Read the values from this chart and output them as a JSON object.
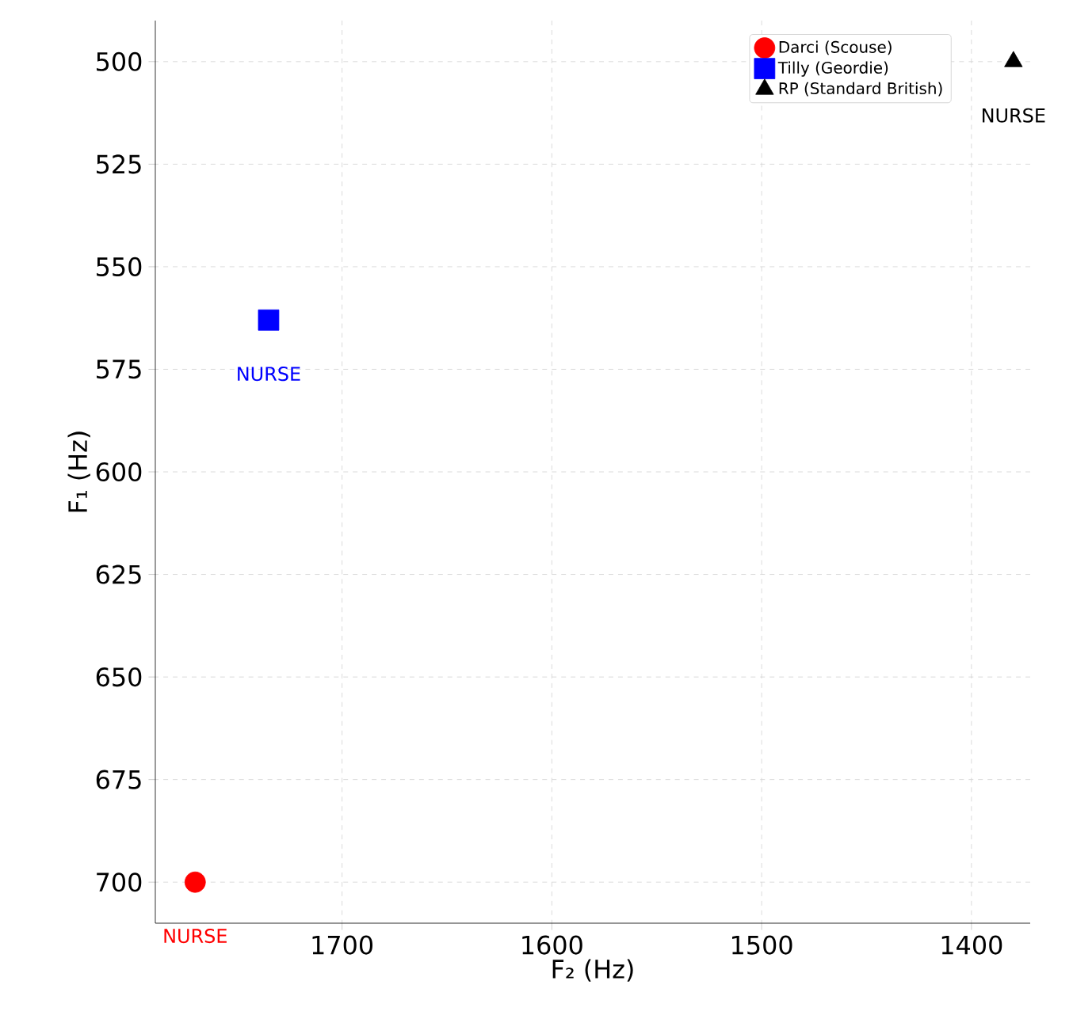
{
  "chart_data": {
    "type": "scatter",
    "xlabel": "F₂ (Hz)",
    "ylabel": "F₁ (Hz)",
    "xlim": [
      1789,
      1372
    ],
    "ylim": [
      710,
      490
    ],
    "xticks": [
      1700,
      1600,
      1500,
      1400
    ],
    "yticks": [
      500,
      525,
      550,
      575,
      600,
      625,
      650,
      675,
      700
    ],
    "grid": true,
    "legend": "top right",
    "series": [
      {
        "name": "Darci (Scouse)",
        "color": "#ff0000",
        "marker": "circle",
        "x": [
          1770
        ],
        "values": [
          700
        ]
      },
      {
        "name": "Tilly (Geordie)",
        "color": "#0000ff",
        "marker": "square",
        "x": [
          1735
        ],
        "values": [
          563
        ]
      },
      {
        "name": "RP (Standard British)",
        "color": "#000000",
        "marker": "triangle",
        "x": [
          1380
        ],
        "values": [
          500
        ]
      }
    ],
    "annotations": [
      {
        "text": "NURSE",
        "x": 1770,
        "y": 700
      },
      {
        "text": "NURSE",
        "x": 1735,
        "y": 563
      },
      {
        "text": "NURSE",
        "x": 1380,
        "y": 500
      }
    ]
  }
}
